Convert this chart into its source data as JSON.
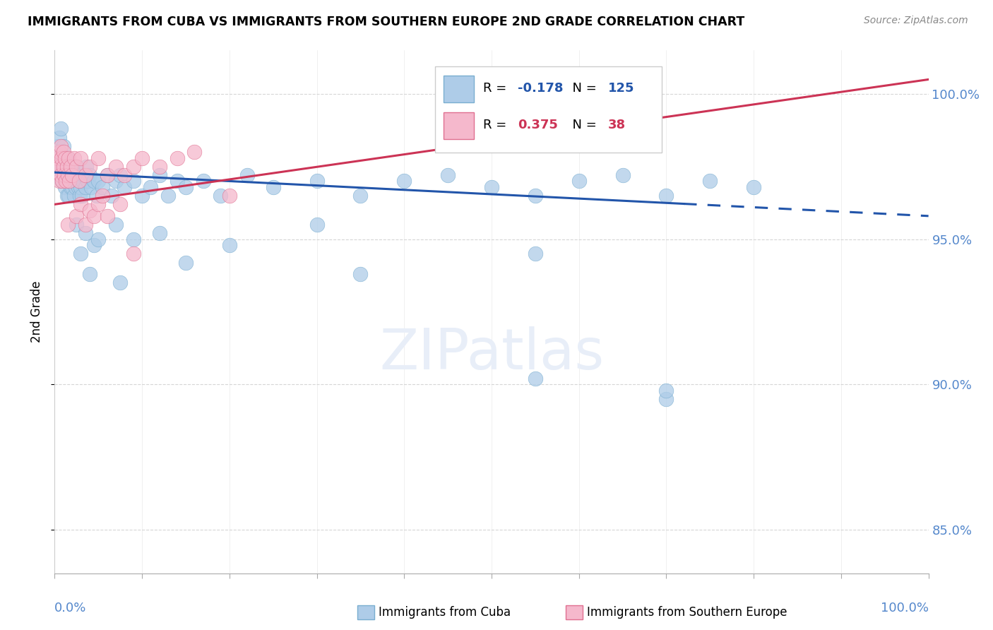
{
  "title": "IMMIGRANTS FROM CUBA VS IMMIGRANTS FROM SOUTHERN EUROPE 2ND GRADE CORRELATION CHART",
  "source": "Source: ZipAtlas.com",
  "ylabel": "2nd Grade",
  "right_yticks": [
    85.0,
    90.0,
    95.0,
    100.0
  ],
  "legend_blue_r": "-0.178",
  "legend_blue_n": "125",
  "legend_pink_r": "0.375",
  "legend_pink_n": "38",
  "blue_color": "#aecce8",
  "blue_edge": "#7aaed0",
  "pink_color": "#f5b8cc",
  "pink_edge": "#e07090",
  "trend_blue": "#2255aa",
  "trend_pink": "#cc3355",
  "xmin": 0.0,
  "xmax": 100.0,
  "ymin": 83.5,
  "ymax": 101.5,
  "blue_trend_x": [
    0,
    100
  ],
  "blue_trend_y": [
    97.3,
    95.8
  ],
  "blue_solid_end": 72,
  "pink_trend_x": [
    0,
    100
  ],
  "pink_trend_y": [
    96.2,
    100.5
  ],
  "pink_solid_end": 100,
  "blue_scatter_x": [
    0.3,
    0.4,
    0.5,
    0.5,
    0.6,
    0.6,
    0.7,
    0.7,
    0.8,
    0.8,
    0.9,
    1.0,
    1.0,
    1.1,
    1.1,
    1.2,
    1.2,
    1.3,
    1.3,
    1.4,
    1.4,
    1.5,
    1.5,
    1.6,
    1.6,
    1.7,
    1.8,
    1.8,
    1.9,
    2.0,
    2.0,
    2.1,
    2.2,
    2.2,
    2.3,
    2.4,
    2.5,
    2.5,
    2.6,
    2.7,
    2.8,
    2.9,
    3.0,
    3.1,
    3.2,
    3.3,
    3.5,
    3.6,
    3.8,
    4.0,
    4.2,
    4.5,
    4.8,
    5.0,
    5.5,
    6.0,
    6.5,
    7.0,
    7.5,
    8.0,
    9.0,
    10.0,
    11.0,
    12.0,
    13.0,
    14.0,
    15.0,
    17.0,
    19.0,
    22.0,
    25.0,
    30.0,
    35.0,
    40.0,
    45.0,
    50.0,
    55.0,
    60.0,
    65.0,
    70.0,
    75.0,
    80.0
  ],
  "blue_scatter_y": [
    97.8,
    98.2,
    97.5,
    98.5,
    97.2,
    98.0,
    97.8,
    98.8,
    97.0,
    97.5,
    97.3,
    97.8,
    98.2,
    97.0,
    97.5,
    96.8,
    97.5,
    97.2,
    97.8,
    96.5,
    97.2,
    97.0,
    97.8,
    96.5,
    97.3,
    97.5,
    96.8,
    97.2,
    97.5,
    96.8,
    97.5,
    97.2,
    96.5,
    97.0,
    97.3,
    96.8,
    97.0,
    97.5,
    97.2,
    96.8,
    97.0,
    96.5,
    96.8,
    96.5,
    97.0,
    97.2,
    96.8,
    97.5,
    97.0,
    97.2,
    96.8,
    97.0,
    96.5,
    97.0,
    96.8,
    97.2,
    96.5,
    97.0,
    97.2,
    96.8,
    97.0,
    96.5,
    96.8,
    97.2,
    96.5,
    97.0,
    96.8,
    97.0,
    96.5,
    97.2,
    96.8,
    97.0,
    96.5,
    97.0,
    97.2,
    96.8,
    96.5,
    97.0,
    97.2,
    96.5,
    97.0,
    96.8
  ],
  "blue_outliers_x": [
    2.5,
    3.5,
    4.5,
    5.0,
    7.0,
    9.0,
    12.0,
    20.0,
    30.0,
    55.0,
    70.0
  ],
  "blue_outliers_y": [
    95.5,
    95.2,
    94.8,
    95.0,
    95.5,
    95.0,
    95.2,
    94.8,
    95.5,
    94.5,
    89.5
  ],
  "blue_low_x": [
    3.0,
    4.0,
    7.5,
    15.0,
    35.0,
    55.0,
    70.0
  ],
  "blue_low_y": [
    94.5,
    93.8,
    93.5,
    94.2,
    93.8,
    90.2,
    89.8
  ],
  "pink_scatter_x": [
    0.3,
    0.4,
    0.5,
    0.5,
    0.6,
    0.7,
    0.7,
    0.8,
    0.9,
    1.0,
    1.0,
    1.1,
    1.2,
    1.3,
    1.4,
    1.5,
    1.6,
    1.7,
    1.8,
    2.0,
    2.2,
    2.5,
    2.8,
    3.0,
    3.5,
    4.0,
    5.0,
    6.0,
    7.0,
    8.0,
    9.0,
    10.0,
    12.0,
    14.0,
    16.0
  ],
  "pink_scatter_y": [
    97.5,
    97.8,
    97.0,
    98.0,
    97.5,
    97.2,
    98.2,
    97.8,
    97.0,
    97.5,
    98.0,
    97.2,
    97.8,
    97.0,
    97.5,
    97.2,
    97.8,
    97.0,
    97.5,
    97.2,
    97.8,
    97.5,
    97.0,
    97.8,
    97.2,
    97.5,
    97.8,
    97.2,
    97.5,
    97.2,
    97.5,
    97.8,
    97.5,
    97.8,
    98.0
  ],
  "pink_outliers_x": [
    1.5,
    2.5,
    3.0,
    3.5,
    4.0,
    4.5,
    5.0,
    5.5,
    6.0,
    7.5,
    9.0,
    20.0
  ],
  "pink_outliers_y": [
    95.5,
    95.8,
    96.2,
    95.5,
    96.0,
    95.8,
    96.2,
    96.5,
    95.8,
    96.2,
    94.5,
    96.5
  ]
}
